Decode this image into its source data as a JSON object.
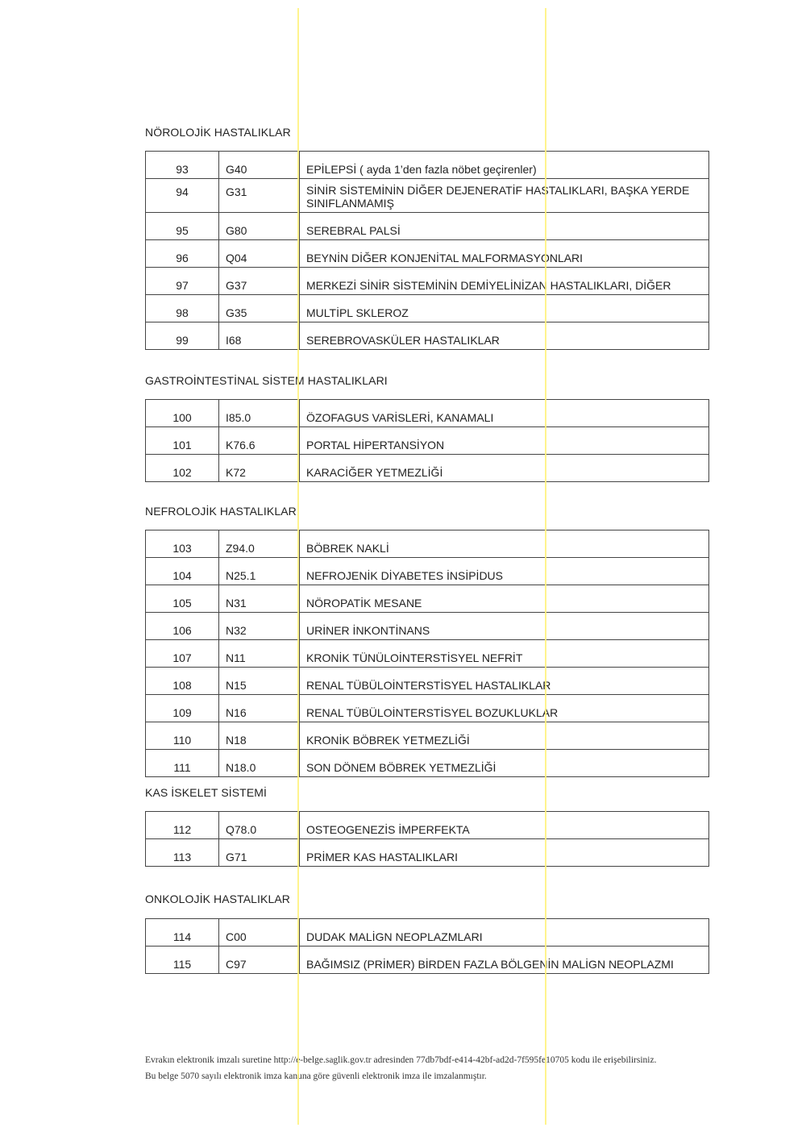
{
  "sections": [
    {
      "title": "NÖROLOJİK HASTALIKLAR",
      "rows": [
        {
          "no": "93",
          "code": "G40",
          "name": "EPİLEPSİ ( ayda 1’den fazla nöbet geçirenler)"
        },
        {
          "no": "94",
          "code": "G31",
          "name": "SİNİR SİSTEMİNİN DİĞER DEJENERATİF HASTALIKLARI, BAŞKA YERDE SINIFLANMAMIŞ"
        },
        {
          "no": "95",
          "code": "G80",
          "name": "SEREBRAL PALSİ"
        },
        {
          "no": "96",
          "code": "Q04",
          "name": "BEYNİN DİĞER KONJENİTAL MALFORMASYONLARI"
        },
        {
          "no": "97",
          "code": "G37",
          "name": "MERKEZİ SİNİR SİSTEMİNİN DEMİYELİNİZAN HASTALIKLARI, DİĞER"
        },
        {
          "no": "98",
          "code": "G35",
          "name": "MULTİPL SKLEROZ"
        },
        {
          "no": "99",
          "code": "I68",
          "name": "SEREBROVASKÜLER HASTALIKLAR"
        }
      ]
    },
    {
      "title": "GASTROİNTESTİNAL SİSTEM HASTALIKLARI",
      "rows": [
        {
          "no": "100",
          "code": "I85.0",
          "name": "ÖZOFAGUS VARİSLERİ, KANAMALI"
        },
        {
          "no": "101",
          "code": "K76.6",
          "name": "PORTAL HİPERTANSİYON"
        },
        {
          "no": "102",
          "code": "K72",
          "name": "KARACİĞER YETMEZLİĞİ"
        }
      ]
    },
    {
      "title": "NEFROLOJİK HASTALIKLAR",
      "rows": [
        {
          "no": "103",
          "code": "Z94.0",
          "name": "BÖBREK NAKLİ"
        },
        {
          "no": "104",
          "code": "N25.1",
          "name": "NEFROJENİK DİYABETES İNSİPİDUS"
        },
        {
          "no": "105",
          "code": "N31",
          "name": "NÖROPATİK MESANE"
        },
        {
          "no": "106",
          "code": "N32",
          "name": "URİNER İNKONTİNANS"
        },
        {
          "no": "107",
          "code": "N11",
          "name": "KRONİK TÜNÜLOİNTERSTİSYEL NEFRİT"
        },
        {
          "no": "108",
          "code": "N15",
          "name": "RENAL TÜBÜLOİNTERSTİSYEL HASTALIKLAR"
        },
        {
          "no": "109",
          "code": "N16",
          "name": "RENAL TÜBÜLOİNTERSTİSYEL BOZUKLUKLAR"
        },
        {
          "no": "110",
          "code": "N18",
          "name": "KRONİK BÖBREK YETMEZLİĞİ"
        },
        {
          "no": "111",
          "code": "N18.0",
          "name": "SON DÖNEM BÖBREK YETMEZLİĞİ"
        }
      ]
    },
    {
      "title": "KAS İSKELET SİSTEMİ",
      "rows": [
        {
          "no": "112",
          "code": "Q78.0",
          "name": "OSTEOGENEZİS İMPERFEKTA"
        },
        {
          "no": "113",
          "code": "G71",
          "name": "PRİMER KAS HASTALIKLARI"
        }
      ]
    },
    {
      "title": "ONKOLOJİK HASTALIKLAR",
      "rows": [
        {
          "no": "114",
          "code": "C00",
          "name": "DUDAK MALİGN NEOPLAZMLARI"
        },
        {
          "no": "115",
          "code": "C97",
          "name": "BAĞIMSIZ (PRİMER) BİRDEN FAZLA BÖLGENİN MALİGN NEOPLAZMI"
        }
      ]
    }
  ],
  "footer": {
    "line1": "Evrakın elektronik imzalı suretine http://e-belge.saglik.gov.tr adresinden 77db7bdf-e414-42bf-ad2d-7f595fe10705 kodu ile erişebilirsiniz.",
    "line2": "Bu belge 5070 sayılı elektronik imza kanuna göre güvenli elektronik imza ile imzalanmıştır."
  },
  "colors": {
    "highlight": "#fff27a",
    "border": "#444444"
  }
}
